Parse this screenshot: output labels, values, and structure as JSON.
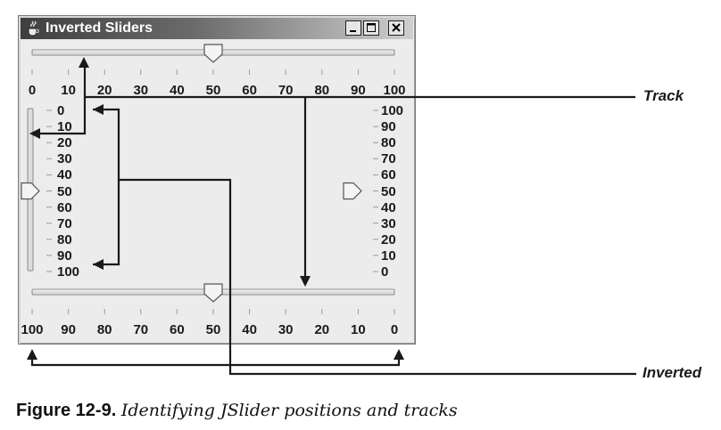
{
  "window": {
    "title": "Inverted Sliders",
    "icon": "java-cup-icon",
    "buttons": [
      "minimize-icon",
      "maximize-icon",
      "close-icon"
    ]
  },
  "sliders": {
    "top": {
      "orientation": "horizontal",
      "inverted": false,
      "value": 50,
      "labels": [
        "0",
        "10",
        "20",
        "30",
        "40",
        "50",
        "60",
        "70",
        "80",
        "90",
        "100"
      ]
    },
    "bottom": {
      "orientation": "horizontal",
      "inverted": true,
      "value": 50,
      "labels": [
        "100",
        "90",
        "80",
        "70",
        "60",
        "50",
        "40",
        "30",
        "20",
        "10",
        "0"
      ]
    },
    "left": {
      "orientation": "vertical",
      "inverted": true,
      "value": 50,
      "labels": [
        "0",
        "10",
        "20",
        "30",
        "40",
        "50",
        "60",
        "70",
        "80",
        "90",
        "100"
      ]
    },
    "right": {
      "orientation": "vertical",
      "inverted": false,
      "value": 50,
      "labels": [
        "100",
        "90",
        "80",
        "70",
        "60",
        "50",
        "40",
        "30",
        "20",
        "10",
        "0"
      ]
    }
  },
  "annotations": {
    "track": "Track",
    "inverted": "Inverted"
  },
  "caption": {
    "label": "Figure 12-9.",
    "text": "Identifying JSlider positions and tracks"
  }
}
